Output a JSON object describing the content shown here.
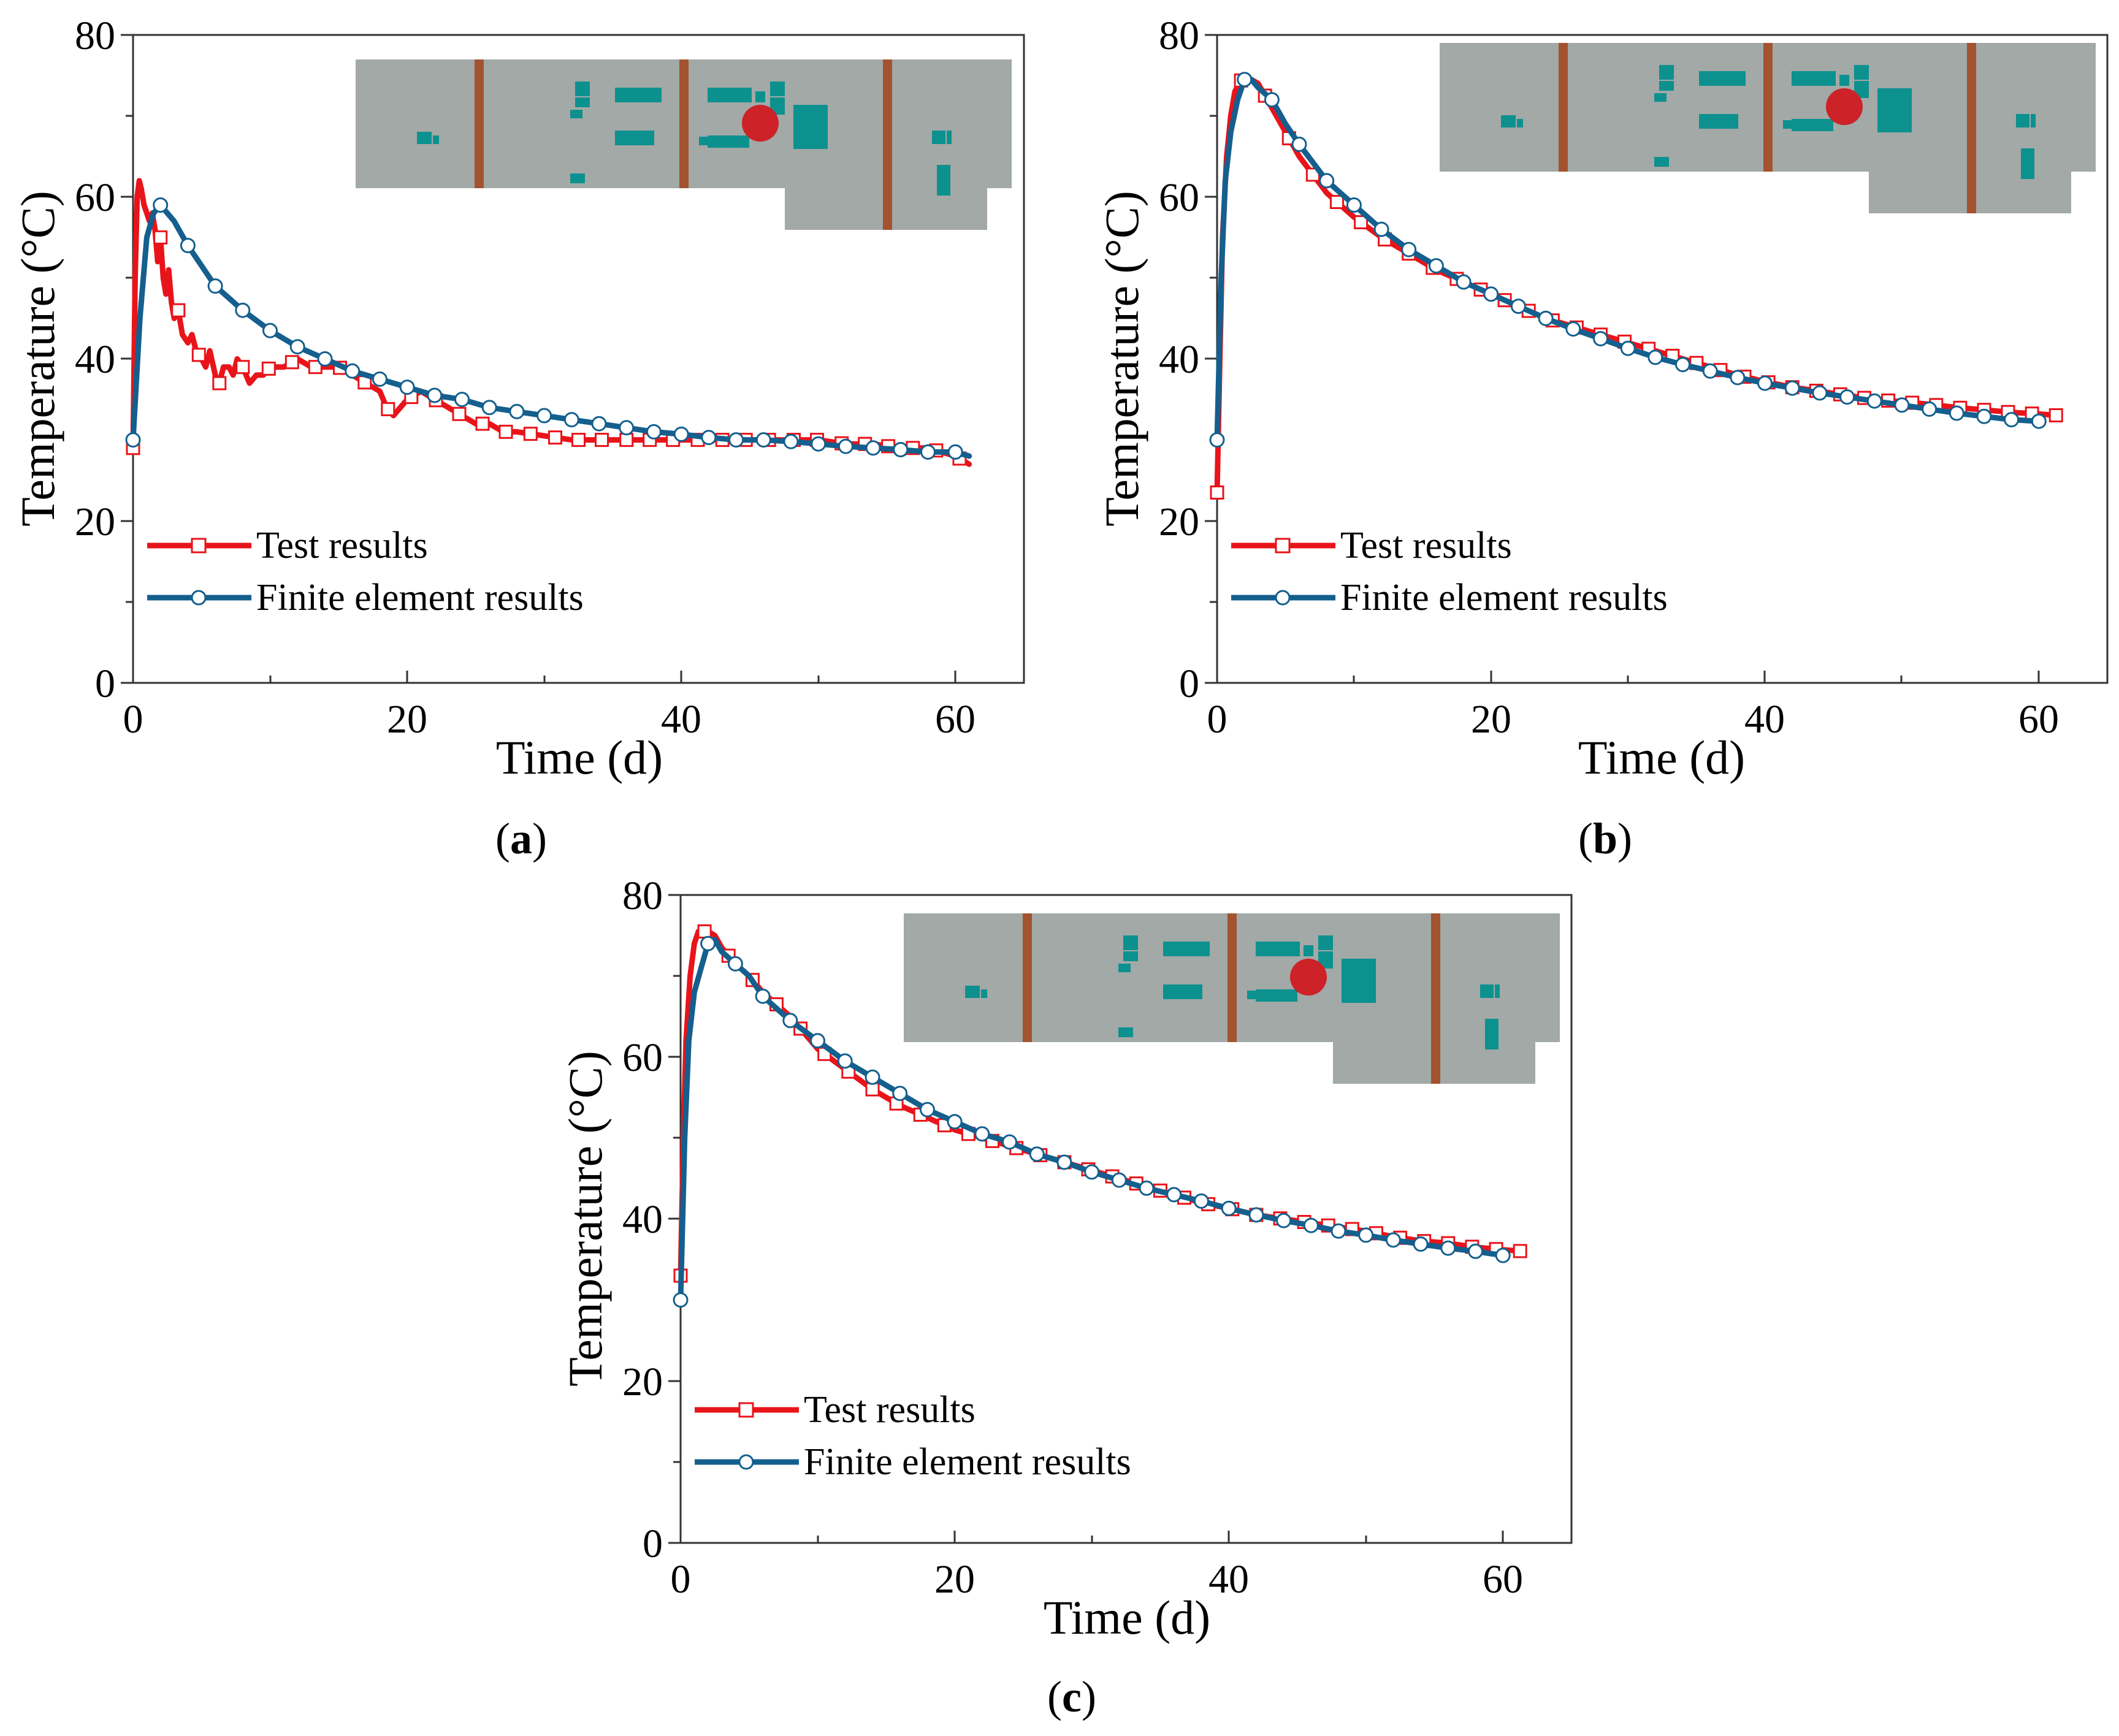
{
  "colors": {
    "test": "#e8141a",
    "fe": "#145f8e",
    "fe_marker_fill": "#ffffff",
    "inset_bg": "#a2a9a7",
    "inset_beam": "#a3532f",
    "inset_block": "#0c918f",
    "inset_dot": "#cc2228"
  },
  "chart_data": [
    {
      "panel": "a",
      "label_letter": "a",
      "type": "line",
      "xlabel": "Time (d)",
      "ylabel": "Temperature (°C)",
      "xlim": [
        0,
        65
      ],
      "ylim": [
        0,
        80
      ],
      "xticks": [
        "0",
        "20",
        "40",
        "60"
      ],
      "yticks": [
        "0",
        "20",
        "40",
        "60",
        "80"
      ],
      "legend": [
        "Test results",
        "Finite element results"
      ],
      "series": [
        {
          "name": "Test results",
          "x": [
            0,
            0.15,
            0.3,
            0.45,
            0.6,
            0.8,
            1.0,
            1.2,
            1.4,
            1.6,
            1.8,
            2.0,
            2.2,
            2.4,
            2.6,
            2.8,
            3.0,
            3.3,
            3.6,
            4.0,
            4.3,
            4.6,
            5.0,
            5.3,
            5.6,
            6.0,
            6.3,
            6.6,
            7.0,
            7.3,
            7.6,
            8.0,
            8.5,
            9.0,
            9.5,
            10,
            11,
            12,
            13,
            14,
            15,
            16,
            17,
            18,
            18.5,
            19,
            19.5,
            20,
            21,
            22,
            23,
            24,
            25,
            26,
            27,
            28,
            30,
            32,
            34,
            36,
            38,
            40,
            42,
            44,
            46,
            48,
            50,
            52,
            54,
            56,
            58,
            60,
            61
          ],
          "y": [
            29,
            50,
            60,
            62,
            61,
            59,
            58,
            57,
            58,
            56,
            52,
            55,
            50,
            48,
            51,
            47,
            45,
            46,
            43,
            42,
            43,
            41,
            40,
            39,
            41,
            38,
            37,
            39,
            39,
            38,
            40,
            39,
            37,
            38,
            38,
            39,
            39,
            40,
            39,
            39,
            39,
            38,
            37,
            36,
            34,
            33,
            34,
            35,
            36,
            35,
            34,
            33,
            32,
            32,
            31,
            31,
            30.5,
            30,
            30,
            30,
            30,
            30,
            30,
            30,
            30,
            30,
            30,
            29.5,
            29.5,
            29,
            29,
            28,
            27
          ],
          "markers_x": [
            0,
            2,
            3.3,
            4.8,
            6.3,
            8,
            9.9,
            11.6,
            13.3,
            15.1,
            16.9,
            18.6,
            20.3,
            22.1,
            23.8,
            25.5,
            27.2,
            29,
            30.8,
            32.5,
            34.2,
            36,
            37.7,
            39.4,
            41.2,
            43,
            44.7,
            46.4,
            48.2,
            49.9,
            51.7,
            53.4,
            55.1,
            56.9,
            58.6,
            60.3
          ]
        },
        {
          "name": "Finite element results",
          "x": [
            0,
            0.5,
            1,
            1.5,
            2,
            3,
            4,
            5,
            6,
            7,
            8,
            10,
            12,
            14,
            16,
            18,
            20,
            22,
            24,
            26,
            28,
            30,
            32,
            34,
            36,
            38,
            40,
            42,
            44,
            46,
            48,
            50,
            52,
            54,
            56,
            58,
            60,
            61
          ],
          "y": [
            30,
            45,
            55,
            58,
            59,
            57,
            54,
            51.5,
            49,
            47.5,
            46,
            43.5,
            41.5,
            40,
            38.5,
            37.5,
            36.5,
            35.5,
            35,
            34,
            33.5,
            33,
            32.5,
            32,
            31.5,
            31,
            30.7,
            30.3,
            30,
            30,
            29.8,
            29.5,
            29.2,
            29,
            28.8,
            28.5,
            28.5,
            28
          ],
          "markers_x": [
            0,
            2,
            4,
            6,
            8,
            10,
            12,
            14,
            16,
            18,
            20,
            22,
            24,
            26,
            28,
            30,
            32,
            34,
            36,
            38,
            40,
            42,
            44,
            46,
            48,
            50,
            52,
            54,
            56,
            58,
            60
          ]
        }
      ]
    },
    {
      "panel": "b",
      "label_letter": "b",
      "type": "line",
      "xlabel": "Time (d)",
      "ylabel": "Temperature (°C)",
      "xlim": [
        0,
        65
      ],
      "ylim": [
        0,
        80
      ],
      "xticks": [
        "0",
        "20",
        "40",
        "60"
      ],
      "yticks": [
        "0",
        "20",
        "40",
        "60",
        "80"
      ],
      "legend": [
        "Test results",
        "Finite element results"
      ],
      "series": [
        {
          "name": "Test results",
          "x": [
            0,
            0.2,
            0.4,
            0.7,
            1.0,
            1.3,
            1.6,
            2.0,
            2.5,
            3.0,
            4,
            5,
            6,
            8,
            10,
            12,
            14,
            16,
            18,
            20,
            22,
            24,
            26,
            28,
            30,
            32,
            34,
            36,
            38,
            40,
            42,
            44,
            46,
            48,
            50,
            52,
            54,
            56,
            58,
            60,
            61.5
          ],
          "y": [
            23.5,
            40,
            55,
            65,
            70,
            73,
            74,
            75,
            74.5,
            74,
            71,
            68,
            65,
            60.5,
            57.5,
            55,
            53,
            51,
            49.5,
            48,
            46.5,
            45,
            44,
            43,
            42,
            41,
            40,
            39,
            38,
            37.2,
            36.5,
            36,
            35.5,
            35,
            34.7,
            34.4,
            34,
            33.7,
            33.4,
            33.2,
            33
          ]
        },
        {
          "name": "Finite element results",
          "x": [
            0,
            0.3,
            0.6,
            1.0,
            1.5,
            2.0,
            2.5,
            3,
            4,
            5,
            6,
            8,
            10,
            12,
            14,
            16,
            18,
            20,
            22,
            24,
            26,
            28,
            30,
            32,
            34,
            36,
            38,
            40,
            42,
            44,
            46,
            48,
            50,
            52,
            54,
            56,
            58,
            60
          ],
          "y": [
            30,
            50,
            62,
            68,
            72,
            74.5,
            74.5,
            73.5,
            72,
            69,
            66.5,
            62,
            59,
            56,
            53.5,
            51.5,
            49.5,
            48,
            46.5,
            45,
            43.7,
            42.5,
            41.3,
            40.2,
            39.3,
            38.5,
            37.7,
            37,
            36.4,
            35.8,
            35.3,
            34.8,
            34.3,
            33.8,
            33.3,
            32.9,
            32.5,
            32.3
          ]
        }
      ]
    },
    {
      "panel": "c",
      "label_letter": "c",
      "type": "line",
      "xlabel": "Time (d)",
      "ylabel": "Temperature (°C)",
      "xlim": [
        0,
        65
      ],
      "ylim": [
        0,
        80
      ],
      "xticks": [
        "0",
        "20",
        "40",
        "60"
      ],
      "yticks": [
        "0",
        "20",
        "40",
        "60",
        "80"
      ],
      "legend": [
        "Test results",
        "Finite element results"
      ],
      "series": [
        {
          "name": "Test results",
          "x": [
            0,
            0.2,
            0.4,
            0.7,
            1.0,
            1.3,
            1.6,
            2.0,
            2.5,
            3,
            4,
            5,
            6,
            8,
            10,
            12,
            14,
            16,
            18,
            20,
            22,
            24,
            26,
            28,
            30,
            32,
            34,
            36,
            38,
            40,
            42,
            44,
            46,
            48,
            50,
            52,
            54,
            56,
            58,
            60,
            61.5
          ],
          "y": [
            33,
            50,
            62,
            70,
            74,
            75.5,
            75.5,
            75.5,
            75,
            73.5,
            71.5,
            70,
            68,
            65,
            61,
            58.5,
            56,
            54,
            52.5,
            51,
            50,
            49,
            48,
            47,
            46,
            45,
            44,
            43,
            42,
            41.3,
            40.5,
            40,
            39.5,
            39,
            38.5,
            37.8,
            37.3,
            37,
            36.5,
            36.2,
            36
          ]
        },
        {
          "name": "Finite element results",
          "x": [
            0,
            0.3,
            0.6,
            1.0,
            1.5,
            2.0,
            2.5,
            3,
            4,
            5,
            6,
            8,
            10,
            12,
            14,
            16,
            18,
            20,
            22,
            24,
            26,
            28,
            30,
            32,
            34,
            36,
            38,
            40,
            42,
            44,
            46,
            48,
            50,
            52,
            54,
            56,
            58,
            60
          ],
          "y": [
            30,
            50,
            62,
            68,
            71,
            74,
            74.5,
            73,
            71.5,
            70,
            67.5,
            64.5,
            62,
            59.5,
            57.5,
            55.5,
            53.5,
            52,
            50.5,
            49.5,
            48,
            47,
            45.8,
            44.8,
            43.8,
            43,
            42.2,
            41.3,
            40.5,
            39.8,
            39.2,
            38.5,
            38,
            37.4,
            36.9,
            36.4,
            36,
            35.5
          ]
        }
      ]
    }
  ]
}
